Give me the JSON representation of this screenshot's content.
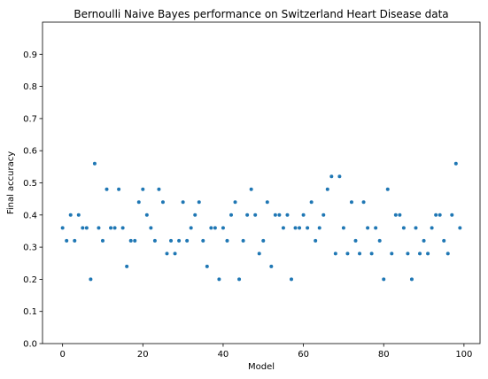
{
  "chart_data": {
    "type": "scatter",
    "title": "Bernoulli Naive Bayes performance on Switzerland Heart Disease data",
    "xlabel": "Model",
    "ylabel": "Final accuracy",
    "xlim": [
      -5,
      104
    ],
    "ylim": [
      0,
      1.0
    ],
    "xticks": [
      0,
      20,
      40,
      60,
      80,
      100
    ],
    "yticks": [
      0.0,
      0.1,
      0.2,
      0.3,
      0.4,
      0.5,
      0.6,
      0.7,
      0.8,
      0.9
    ],
    "grid": false,
    "marker_color": "#1f77b4",
    "series": [
      {
        "x": [
          0,
          1,
          2,
          3,
          4,
          5,
          6,
          7,
          8,
          9,
          10,
          11,
          12,
          13,
          14,
          15,
          16,
          17,
          18,
          19,
          20,
          21,
          22,
          23,
          24,
          25,
          26,
          27,
          28,
          29,
          30,
          31,
          32,
          33,
          34,
          35,
          36,
          37,
          38,
          39,
          40,
          41,
          42,
          43,
          44,
          45,
          46,
          47,
          48,
          49,
          50,
          51,
          52,
          53,
          54,
          55,
          56,
          57,
          58,
          59,
          60,
          61,
          62,
          63,
          64,
          65,
          66,
          67,
          68,
          69,
          70,
          71,
          72,
          73,
          74,
          75,
          76,
          77,
          78,
          79,
          80,
          81,
          82,
          83,
          84,
          85,
          86,
          87,
          88,
          89,
          90,
          91,
          92,
          93,
          94,
          95,
          96,
          97,
          98,
          99
        ],
        "y": [
          0.36,
          0.32,
          0.4,
          0.32,
          0.4,
          0.36,
          0.36,
          0.2,
          0.56,
          0.36,
          0.32,
          0.48,
          0.36,
          0.36,
          0.48,
          0.36,
          0.24,
          0.32,
          0.32,
          0.44,
          0.48,
          0.4,
          0.36,
          0.32,
          0.48,
          0.44,
          0.28,
          0.32,
          0.28,
          0.32,
          0.44,
          0.32,
          0.36,
          0.4,
          0.44,
          0.32,
          0.24,
          0.36,
          0.36,
          0.2,
          0.36,
          0.32,
          0.4,
          0.44,
          0.2,
          0.32,
          0.4,
          0.48,
          0.4,
          0.28,
          0.32,
          0.44,
          0.24,
          0.4,
          0.4,
          0.36,
          0.4,
          0.2,
          0.36,
          0.36,
          0.4,
          0.36,
          0.44,
          0.32,
          0.36,
          0.4,
          0.48,
          0.52,
          0.28,
          0.52,
          0.36,
          0.28,
          0.44,
          0.32,
          0.28,
          0.44,
          0.36,
          0.28,
          0.36,
          0.32,
          0.2,
          0.48,
          0.28,
          0.4,
          0.4,
          0.36,
          0.28,
          0.2,
          0.36,
          0.28,
          0.32,
          0.28,
          0.36,
          0.4,
          0.4,
          0.32,
          0.28,
          0.4,
          0.56,
          0.36
        ]
      }
    ]
  }
}
